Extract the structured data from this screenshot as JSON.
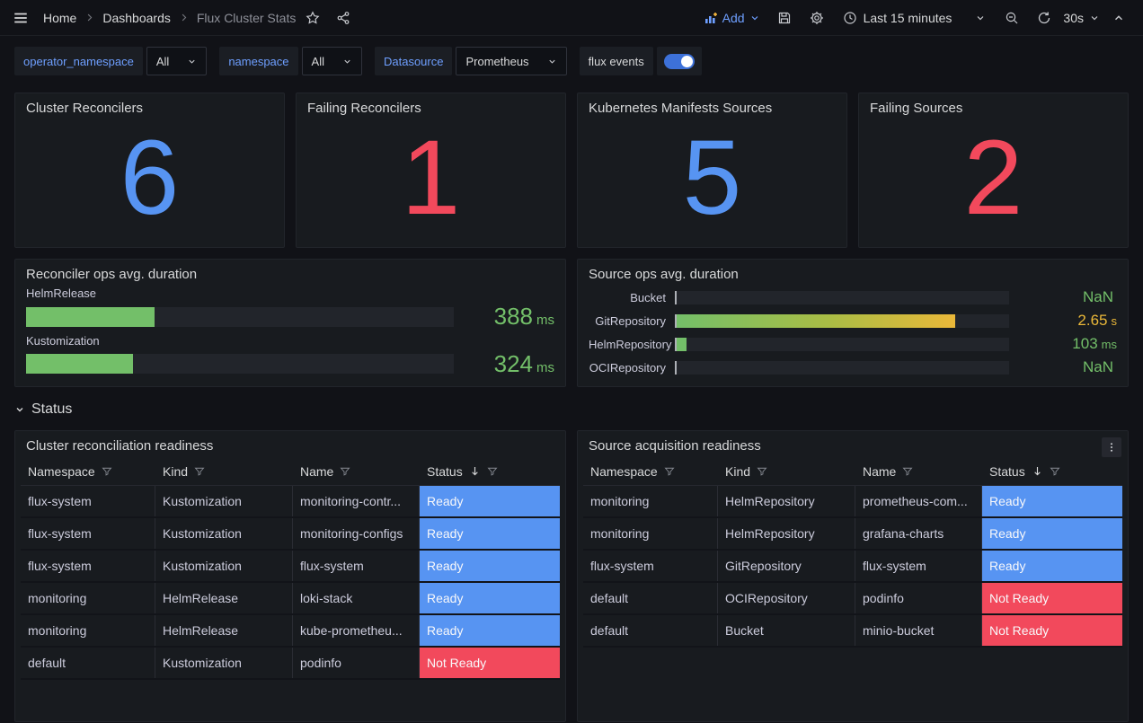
{
  "nav": {
    "breadcrumbs": [
      "Home",
      "Dashboards",
      "Flux Cluster Stats"
    ],
    "add_label": "Add",
    "time_range": "Last 15 minutes",
    "refresh_interval": "30s"
  },
  "filters": {
    "variables": [
      {
        "label": "operator_namespace",
        "value": "All"
      },
      {
        "label": "namespace",
        "value": "All"
      },
      {
        "label": "Datasource",
        "value": "Prometheus"
      }
    ],
    "flux_events": {
      "label": "flux events",
      "enabled": true
    }
  },
  "stats": [
    {
      "title": "Cluster Reconcilers",
      "value": "6",
      "color": "#5794F2"
    },
    {
      "title": "Failing Reconcilers",
      "value": "1",
      "color": "#F2495C"
    },
    {
      "title": "Kubernetes Manifests Sources",
      "value": "5",
      "color": "#5794F2"
    },
    {
      "title": "Failing Sources",
      "value": "2",
      "color": "#F2495C"
    }
  ],
  "section": {
    "title": "Status"
  },
  "chart_data": [
    {
      "type": "bar",
      "title": "Reconciler ops avg. duration",
      "orientation": "horizontal",
      "unit": "ms",
      "categories": [
        "HelmRelease",
        "Kustomization"
      ],
      "values": [
        388,
        324
      ],
      "bars": [
        {
          "label": "HelmRelease",
          "number": "388",
          "unit": "ms",
          "percent": 30,
          "fill": "#73BF69",
          "value_color": "#73BF69"
        },
        {
          "label": "Kustomization",
          "number": "324",
          "unit": "ms",
          "percent": 25,
          "fill": "#73BF69",
          "value_color": "#73BF69"
        }
      ]
    },
    {
      "type": "bar",
      "title": "Source ops avg. duration",
      "orientation": "horizontal",
      "categories": [
        "Bucket",
        "GitRepository",
        "HelmRepository",
        "OCIRepository"
      ],
      "values": [
        "NaN",
        2.65,
        0.103,
        "NaN"
      ],
      "bars": [
        {
          "label": "Bucket",
          "number": "NaN",
          "unit": "",
          "percent": 0,
          "fill": "#73BF69",
          "value_color": "#73BF69"
        },
        {
          "label": "GitRepository",
          "number": "2.65",
          "unit": "s",
          "percent": 84,
          "fill": "linear-gradient(90deg,#73BF69 0%,#AABD45 55%,#EAB839 100%)",
          "value_color": "#EAB839"
        },
        {
          "label": "HelmRepository",
          "number": "103",
          "unit": "ms",
          "percent": 3.5,
          "fill": "#73BF69",
          "value_color": "#73BF69"
        },
        {
          "label": "OCIRepository",
          "number": "NaN",
          "unit": "",
          "percent": 0,
          "fill": "#73BF69",
          "value_color": "#73BF69"
        }
      ]
    },
    {
      "type": "table",
      "title": "Cluster reconciliation readiness",
      "columns": [
        "Namespace",
        "Kind",
        "Name",
        "Status"
      ],
      "rows": [
        [
          "flux-system",
          "Kustomization",
          "monitoring-contr...",
          "Ready"
        ],
        [
          "flux-system",
          "Kustomization",
          "monitoring-configs",
          "Ready"
        ],
        [
          "flux-system",
          "Kustomization",
          "flux-system",
          "Ready"
        ],
        [
          "monitoring",
          "HelmRelease",
          "loki-stack",
          "Ready"
        ],
        [
          "monitoring",
          "HelmRelease",
          "kube-prometheu...",
          "Ready"
        ],
        [
          "default",
          "Kustomization",
          "podinfo",
          "Not Ready"
        ]
      ]
    },
    {
      "type": "table",
      "title": "Source acquisition readiness",
      "columns": [
        "Namespace",
        "Kind",
        "Name",
        "Status"
      ],
      "rows": [
        [
          "monitoring",
          "HelmRepository",
          "prometheus-com...",
          "Ready"
        ],
        [
          "monitoring",
          "HelmRepository",
          "grafana-charts",
          "Ready"
        ],
        [
          "flux-system",
          "GitRepository",
          "flux-system",
          "Ready"
        ],
        [
          "default",
          "OCIRepository",
          "podinfo",
          "Not Ready"
        ],
        [
          "default",
          "Bucket",
          "minio-bucket",
          "Not Ready"
        ]
      ]
    }
  ],
  "colors": {
    "ready_bg": "#5794F2",
    "not_ready_bg": "#F2495C",
    "stat_blue": "#5794F2",
    "stat_red": "#F2495C",
    "gauge_green": "#73BF69",
    "gauge_yellow": "#EAB839",
    "link_blue": "#6E9FFF",
    "toggle_on": "#3D71D9"
  }
}
